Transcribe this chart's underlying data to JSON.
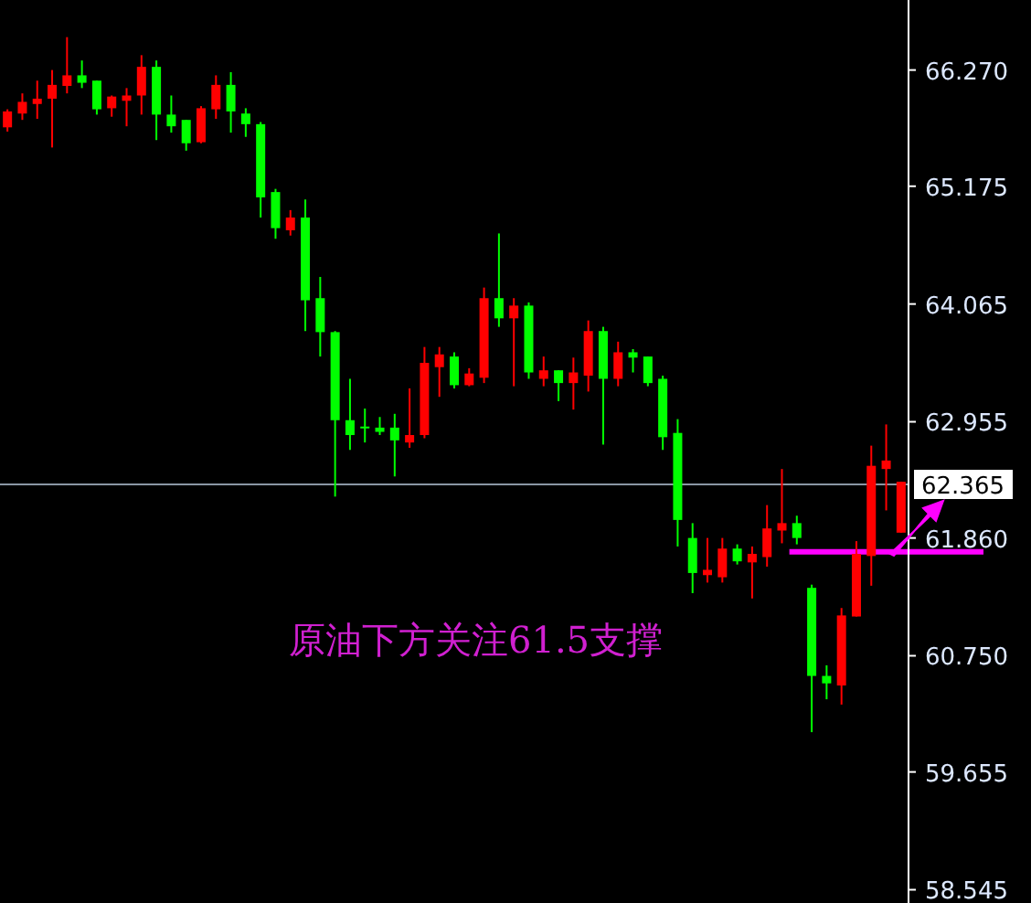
{
  "chart_data": {
    "type": "candlestick",
    "categories": [
      null,
      null,
      null,
      null,
      null,
      null,
      null,
      null,
      null,
      null,
      null,
      null,
      null,
      null,
      null,
      null,
      null,
      null,
      null,
      null,
      null,
      null,
      null,
      null,
      null,
      null,
      null,
      null,
      null,
      null,
      null,
      null,
      null,
      null,
      null,
      null,
      null,
      null,
      null,
      null,
      null,
      null,
      null,
      null,
      null,
      null,
      null,
      null,
      null,
      null,
      null,
      null,
      null,
      null,
      null,
      null,
      null,
      null,
      null,
      null,
      null
    ],
    "ohlc": [
      [
        65.73,
        65.9,
        65.69,
        65.88
      ],
      [
        65.86,
        66.05,
        65.8,
        65.97
      ],
      [
        65.95,
        66.17,
        65.81,
        66.0
      ],
      [
        66.0,
        66.27,
        65.54,
        66.13
      ],
      [
        66.12,
        66.58,
        66.05,
        66.22
      ],
      [
        66.22,
        66.36,
        66.1,
        66.15
      ],
      [
        66.17,
        66.17,
        65.85,
        65.9
      ],
      [
        65.91,
        66.03,
        65.83,
        66.02
      ],
      [
        65.98,
        66.1,
        65.74,
        66.03
      ],
      [
        66.03,
        66.41,
        65.85,
        66.3
      ],
      [
        66.3,
        66.36,
        65.61,
        65.85
      ],
      [
        65.85,
        66.03,
        65.68,
        65.74
      ],
      [
        65.8,
        65.8,
        65.51,
        65.58
      ],
      [
        65.59,
        65.93,
        65.58,
        65.91
      ],
      [
        65.9,
        66.22,
        65.81,
        66.13
      ],
      [
        66.13,
        66.25,
        65.68,
        65.88
      ],
      [
        65.86,
        65.91,
        65.64,
        65.76
      ],
      [
        65.76,
        65.78,
        64.88,
        65.07
      ],
      [
        65.12,
        65.15,
        64.68,
        64.78
      ],
      [
        64.76,
        64.95,
        64.71,
        64.88
      ],
      [
        64.88,
        65.05,
        63.81,
        64.1
      ],
      [
        64.12,
        64.32,
        63.57,
        63.8
      ],
      [
        63.8,
        63.81,
        62.25,
        62.97
      ],
      [
        62.97,
        63.36,
        62.69,
        62.83
      ],
      [
        62.91,
        63.08,
        62.76,
        62.9
      ],
      [
        62.9,
        63.0,
        62.83,
        62.86
      ],
      [
        62.9,
        63.03,
        62.44,
        62.78
      ],
      [
        62.76,
        63.27,
        62.71,
        62.83
      ],
      [
        62.83,
        63.66,
        62.8,
        63.51
      ],
      [
        63.47,
        63.66,
        63.19,
        63.59
      ],
      [
        63.57,
        63.61,
        63.27,
        63.3
      ],
      [
        63.3,
        63.46,
        63.29,
        63.41
      ],
      [
        63.37,
        64.22,
        63.32,
        64.12
      ],
      [
        64.12,
        64.73,
        63.85,
        63.93
      ],
      [
        63.93,
        64.12,
        63.29,
        64.05
      ],
      [
        64.05,
        64.08,
        63.36,
        63.42
      ],
      [
        63.36,
        63.57,
        63.29,
        63.44
      ],
      [
        63.44,
        63.44,
        63.15,
        63.32
      ],
      [
        63.32,
        63.56,
        63.07,
        63.42
      ],
      [
        63.39,
        63.91,
        63.24,
        63.81
      ],
      [
        63.81,
        63.85,
        62.74,
        63.36
      ],
      [
        63.36,
        63.71,
        63.29,
        63.61
      ],
      [
        63.61,
        63.64,
        63.42,
        63.56
      ],
      [
        63.57,
        63.57,
        63.29,
        63.32
      ],
      [
        63.36,
        63.39,
        62.69,
        62.81
      ],
      [
        62.85,
        62.98,
        61.78,
        62.03
      ],
      [
        61.86,
        62.0,
        61.34,
        61.53
      ],
      [
        61.51,
        61.86,
        61.44,
        61.56
      ],
      [
        61.49,
        61.86,
        61.44,
        61.76
      ],
      [
        61.76,
        61.8,
        61.61,
        61.64
      ],
      [
        61.63,
        61.78,
        61.29,
        61.71
      ],
      [
        61.68,
        62.17,
        61.59,
        61.95
      ],
      [
        61.93,
        62.51,
        61.81,
        62.0
      ],
      [
        62.0,
        62.07,
        61.8,
        61.86
      ],
      [
        61.39,
        61.42,
        60.03,
        60.56
      ],
      [
        60.56,
        60.66,
        60.34,
        60.49
      ],
      [
        60.47,
        61.2,
        60.29,
        61.13
      ],
      [
        61.12,
        61.83,
        61.12,
        61.71
      ],
      [
        61.69,
        62.73,
        61.41,
        62.54
      ],
      [
        62.51,
        62.93,
        62.12,
        62.59
      ],
      [
        61.91,
        62.39,
        61.91,
        62.39
      ]
    ],
    "colors": [
      "#ff0000",
      "#ff0000",
      "#ff0000",
      "#ff0000",
      "#ff0000",
      "#00ff00",
      "#00ff00",
      "#ff0000",
      "#ff0000",
      "#ff0000",
      "#00ff00",
      "#00ff00",
      "#00ff00",
      "#ff0000",
      "#ff0000",
      "#00ff00",
      "#00ff00",
      "#00ff00",
      "#00ff00",
      "#ff0000",
      "#00ff00",
      "#00ff00",
      "#00ff00",
      "#00ff00",
      "#00ff00",
      "#00ff00",
      "#00ff00",
      "#ff0000",
      "#ff0000",
      "#ff0000",
      "#00ff00",
      "#ff0000",
      "#ff0000",
      "#00ff00",
      "#ff0000",
      "#00ff00",
      "#ff0000",
      "#00ff00",
      "#ff0000",
      "#ff0000",
      "#00ff00",
      "#ff0000",
      "#00ff00",
      "#00ff00",
      "#00ff00",
      "#00ff00",
      "#00ff00",
      "#ff0000",
      "#ff0000",
      "#00ff00",
      "#ff0000",
      "#ff0000",
      "#ff0000",
      "#00ff00",
      "#00ff00",
      "#00ff00",
      "#ff0000",
      "#ff0000",
      "#ff0000",
      "#ff0000",
      "#ff0000"
    ],
    "ylim": [
      58.42,
      66.93
    ],
    "yticks": [
      {
        "value": 66.27,
        "label": "66.270"
      },
      {
        "value": 65.175,
        "label": "65.175"
      },
      {
        "value": 64.065,
        "label": "64.065"
      },
      {
        "value": 62.955,
        "label": "62.955"
      },
      {
        "value": 61.86,
        "label": "61.860"
      },
      {
        "value": 60.75,
        "label": "60.750"
      },
      {
        "value": 59.655,
        "label": "59.655"
      },
      {
        "value": 58.545,
        "label": "58.545"
      }
    ],
    "tick_labels": "y",
    "ref_lines": [
      {
        "axis": "y",
        "value": 62.365,
        "label": "62.365",
        "color": "#8a96a4"
      },
      {
        "axis": "y",
        "value": 61.73,
        "color": "#ff00ff"
      }
    ],
    "annotations": [
      "原油下方关注61.5支撑"
    ]
  }
}
